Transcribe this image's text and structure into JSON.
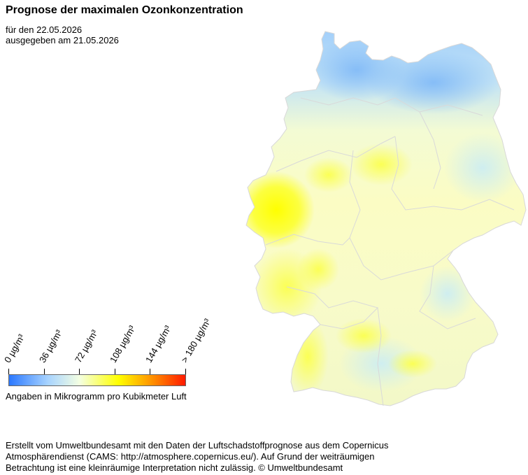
{
  "header": {
    "title": "Prognose der maximalen Ozonkonzentration",
    "forecast_for": "für den 22.05.2026",
    "issued": "ausgegeben am 21.05.2026"
  },
  "map": {
    "country": "Germany",
    "legend": {
      "ticks": [
        "0 µg/m³",
        "36 µg/m³",
        "72 µg/m³",
        "108 µg/m³",
        "144 µg/m³",
        "> 180 µg/m³"
      ],
      "colors": {
        "low": "#2b78ff",
        "light_blue": "#a7d3ff",
        "pale": "#f4ffe2",
        "yellow": "#ffff00",
        "orange": "#ff8c00",
        "high": "#ff1a00"
      },
      "unit_note": "Angaben in Mikrogramm pro Kubikmeter Luft"
    }
  },
  "footer": {
    "line1": "Erstellt vom Umweltbundesamt mit den Daten der Luftschadstoffprognose aus dem Copernicus",
    "line2": "Atmosphärendienst (CAMS: http://atmosphere.copernicus.eu/). Auf Grund der weiträumigen",
    "line3": "Betrachtung ist eine kleinräumige Interpretation nicht zulässig. © Umweltbundesamt"
  }
}
